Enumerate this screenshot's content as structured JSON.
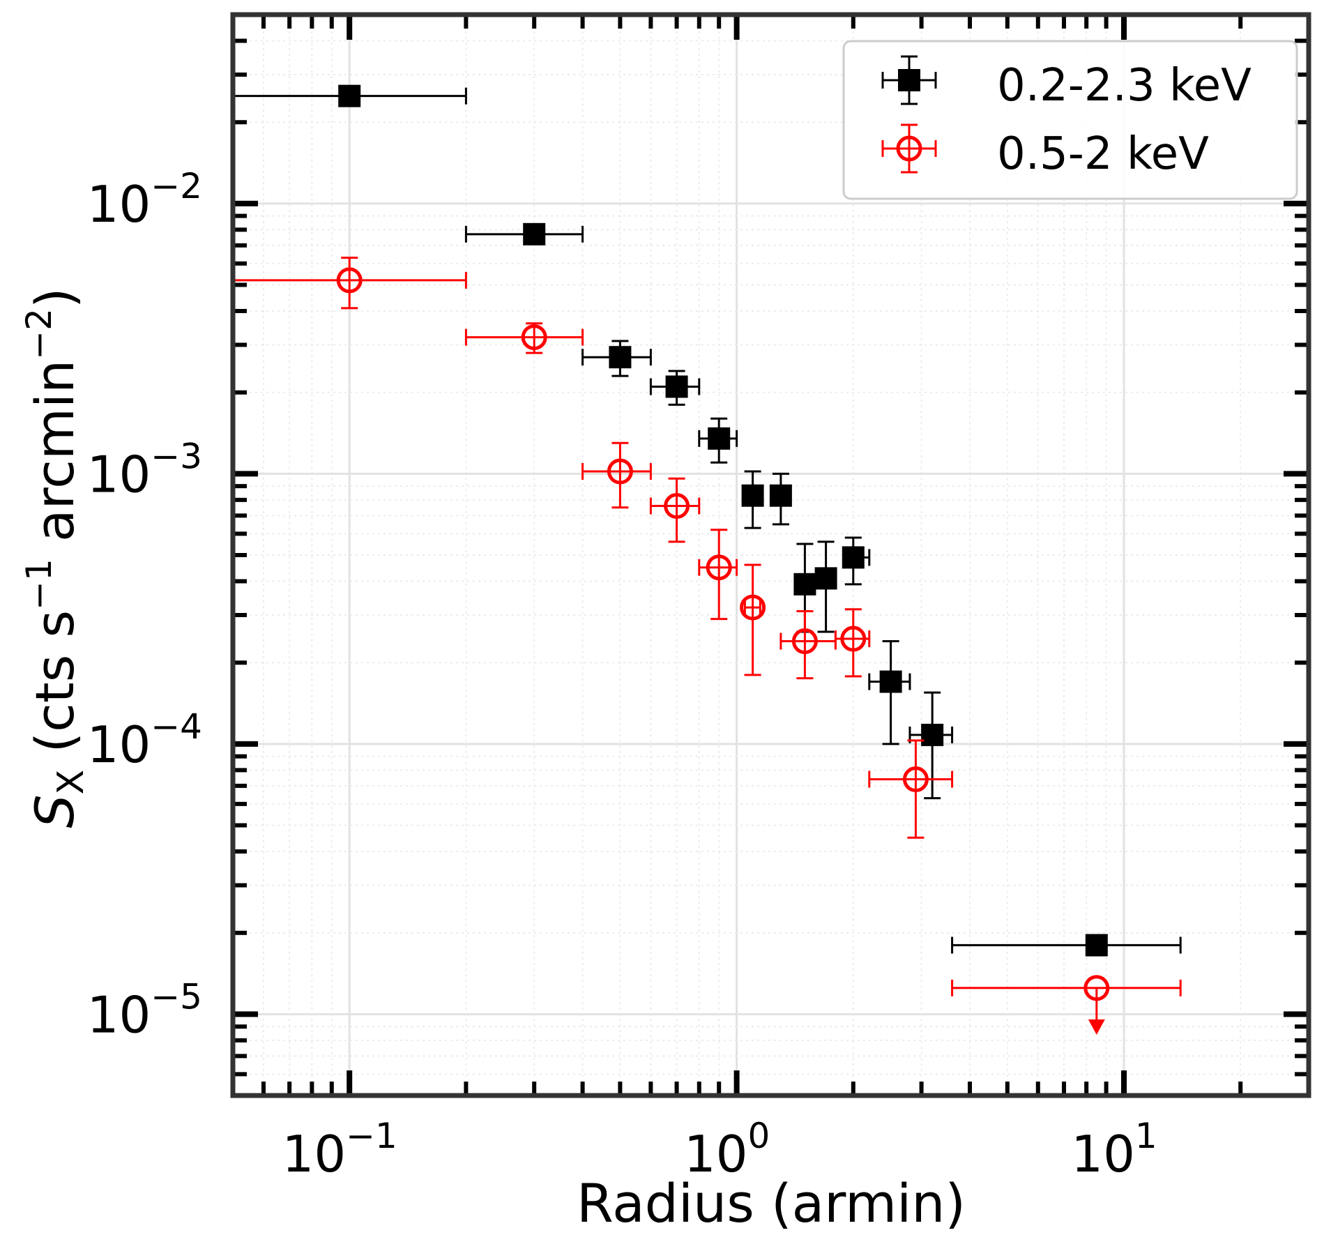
{
  "chart_data": {
    "type": "scatter",
    "x_scale": "log",
    "y_scale": "log",
    "xlim": [
      0.05,
      30
    ],
    "ylim": [
      5e-06,
      0.05
    ],
    "xlabel": "Radius (armin)",
    "ylabel": {
      "main": "S",
      "sub": "X",
      "unit_open": " (cts s",
      "unit_exp1": "−1",
      "unit_mid": " arcmin",
      "unit_exp2": "−2",
      "unit_close": ")"
    },
    "x_ticks": [
      {
        "value": 0.1,
        "base": "10",
        "exp": "−1"
      },
      {
        "value": 1,
        "base": "10",
        "exp": "0"
      },
      {
        "value": 10,
        "base": "10",
        "exp": "1"
      }
    ],
    "y_ticks": [
      {
        "value": 0.01,
        "base": "10",
        "exp": "−2"
      },
      {
        "value": 0.001,
        "base": "10",
        "exp": "−3"
      },
      {
        "value": 0.0001,
        "base": "10",
        "exp": "−4"
      },
      {
        "value": 1e-05,
        "base": "10",
        "exp": "−5"
      }
    ],
    "grid": true,
    "legend_position": "top-right",
    "series": [
      {
        "name": "0.2-2.3 keV",
        "color": "#000000",
        "marker": "square-filled",
        "points": [
          {
            "x": 0.1,
            "xlo": 0.05,
            "xhi": 0.2,
            "y": 0.025,
            "ylo": 0.025,
            "yhi": 0.025
          },
          {
            "x": 0.3,
            "xlo": 0.2,
            "xhi": 0.4,
            "y": 0.0077,
            "ylo": 0.0077,
            "yhi": 0.0077
          },
          {
            "x": 0.5,
            "xlo": 0.4,
            "xhi": 0.6,
            "y": 0.0027,
            "ylo": 0.0023,
            "yhi": 0.0031
          },
          {
            "x": 0.7,
            "xlo": 0.6,
            "xhi": 0.8,
            "y": 0.0021,
            "ylo": 0.0018,
            "yhi": 0.0024
          },
          {
            "x": 0.9,
            "xlo": 0.8,
            "xhi": 1.0,
            "y": 0.00135,
            "ylo": 0.0011,
            "yhi": 0.0016
          },
          {
            "x": 1.1,
            "xlo": 1.05,
            "xhi": 1.15,
            "y": 0.00083,
            "ylo": 0.00063,
            "yhi": 0.00102
          },
          {
            "x": 1.3,
            "xlo": 1.25,
            "xhi": 1.35,
            "y": 0.00083,
            "ylo": 0.00065,
            "yhi": 0.001
          },
          {
            "x": 1.5,
            "xlo": 1.45,
            "xhi": 1.55,
            "y": 0.00039,
            "ylo": 0.00026,
            "yhi": 0.00055
          },
          {
            "x": 1.7,
            "xlo": 1.65,
            "xhi": 1.75,
            "y": 0.00041,
            "ylo": 0.00026,
            "yhi": 0.00056
          },
          {
            "x": 2.0,
            "xlo": 1.9,
            "xhi": 2.2,
            "y": 0.00049,
            "ylo": 0.00039,
            "yhi": 0.00058
          },
          {
            "x": 2.5,
            "xlo": 2.2,
            "xhi": 2.8,
            "y": 0.00017,
            "ylo": 0.0001,
            "yhi": 0.00024
          },
          {
            "x": 3.2,
            "xlo": 2.8,
            "xhi": 3.6,
            "y": 0.000108,
            "ylo": 6.3e-05,
            "yhi": 0.000155
          },
          {
            "x": 8.5,
            "xlo": 3.6,
            "xhi": 14,
            "y": 1.8e-05,
            "ylo": 1.8e-05,
            "yhi": 1.8e-05
          }
        ]
      },
      {
        "name": "0.5-2 keV",
        "color": "#ff0000",
        "marker": "circle-open",
        "points": [
          {
            "x": 0.1,
            "xlo": 0.05,
            "xhi": 0.2,
            "y": 0.0052,
            "ylo": 0.0041,
            "yhi": 0.0063
          },
          {
            "x": 0.3,
            "xlo": 0.2,
            "xhi": 0.4,
            "y": 0.0032,
            "ylo": 0.0028,
            "yhi": 0.0036
          },
          {
            "x": 0.5,
            "xlo": 0.4,
            "xhi": 0.6,
            "y": 0.00102,
            "ylo": 0.00075,
            "yhi": 0.0013
          },
          {
            "x": 0.7,
            "xlo": 0.6,
            "xhi": 0.8,
            "y": 0.00076,
            "ylo": 0.00056,
            "yhi": 0.00096
          },
          {
            "x": 0.9,
            "xlo": 0.8,
            "xhi": 1.0,
            "y": 0.00045,
            "ylo": 0.00029,
            "yhi": 0.00062
          },
          {
            "x": 1.1,
            "xlo": 1.05,
            "xhi": 1.15,
            "y": 0.00032,
            "ylo": 0.00018,
            "yhi": 0.00046
          },
          {
            "x": 1.5,
            "xlo": 1.3,
            "xhi": 1.8,
            "y": 0.00024,
            "ylo": 0.000175,
            "yhi": 0.00031
          },
          {
            "x": 2.0,
            "xlo": 1.8,
            "xhi": 2.2,
            "y": 0.000245,
            "ylo": 0.000178,
            "yhi": 0.000315
          },
          {
            "x": 2.9,
            "xlo": 2.2,
            "xhi": 3.6,
            "y": 7.4e-05,
            "ylo": 4.5e-05,
            "yhi": 0.000103
          },
          {
            "x": 8.5,
            "xlo": 3.6,
            "xhi": 14,
            "y": 1.25e-05,
            "ylo": 1.25e-05,
            "yhi": 1.25e-05,
            "upper_limit": true,
            "arrow_to": 8.8e-06
          }
        ]
      }
    ]
  }
}
